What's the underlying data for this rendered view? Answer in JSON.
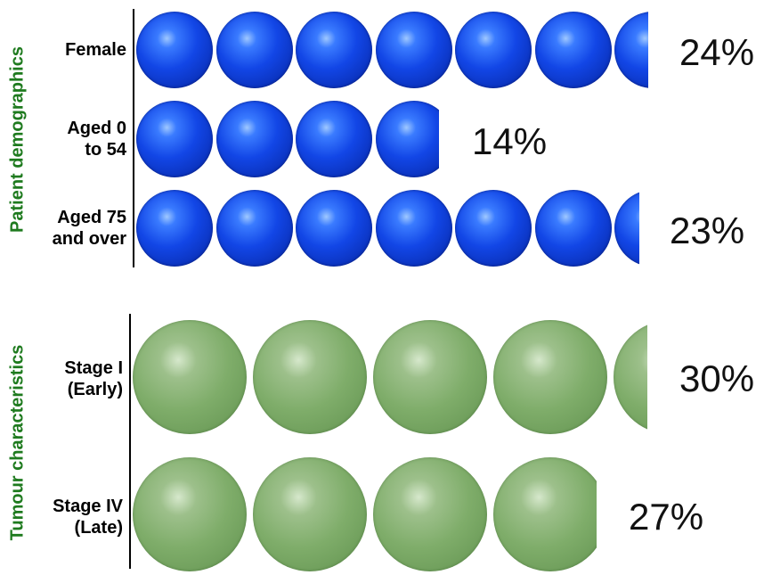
{
  "chart_data": {
    "type": "bar",
    "groups": [
      {
        "title": "Patient demographics",
        "color": "#1246e6",
        "rows": [
          {
            "label": "Female",
            "value": 24,
            "value_label": "24%"
          },
          {
            "label": "Aged 0\nto 54",
            "value": 14,
            "value_label": "14%"
          },
          {
            "label": "Aged 75\nand over",
            "value": 23,
            "value_label": "23%"
          }
        ]
      },
      {
        "title": "Tumour characteristics",
        "color": "#7fad6a",
        "rows": [
          {
            "label": "Stage I\n(Early)",
            "value": 30,
            "value_label": "30%"
          },
          {
            "label": "Stage IV\n(Late)",
            "value": 27,
            "value_label": "27%"
          }
        ]
      }
    ],
    "unit_per_ball": {
      "Patient demographics": 3.5,
      "Tumour characteristics": 7
    }
  }
}
